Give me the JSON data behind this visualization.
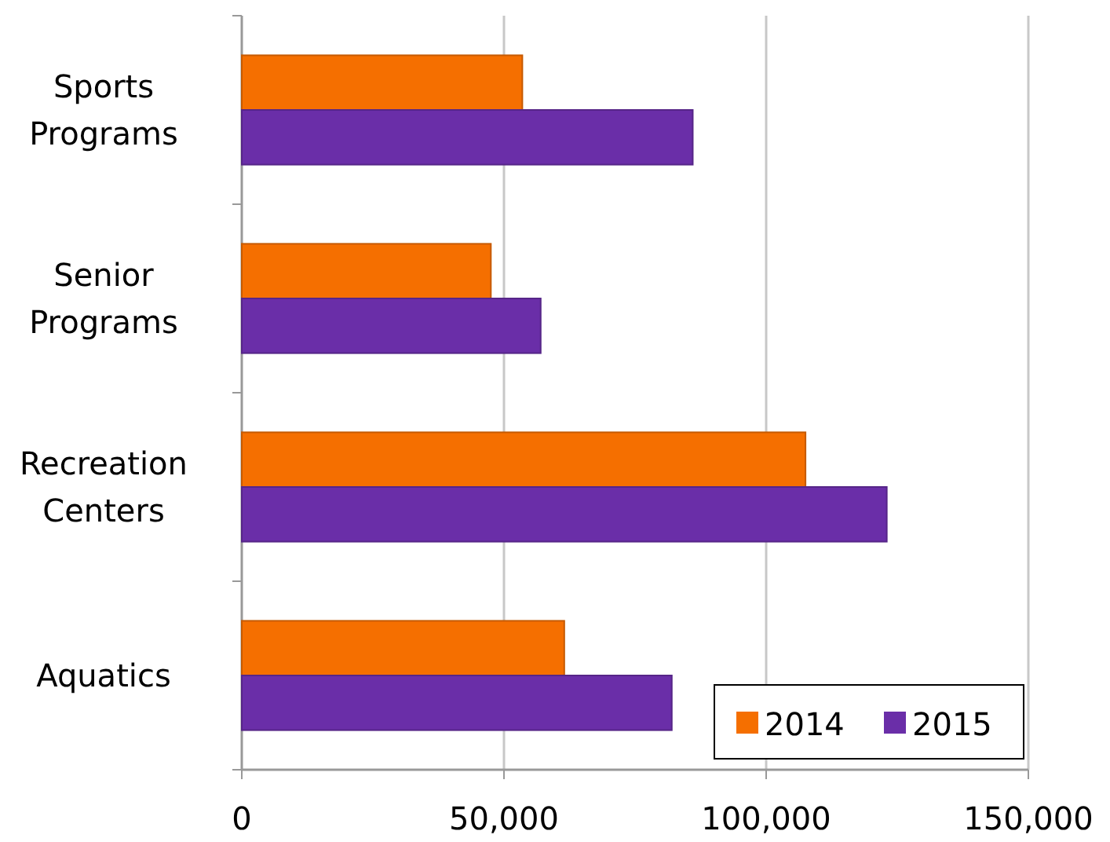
{
  "chart_data": {
    "type": "bar",
    "orientation": "horizontal",
    "categories": [
      "Sports Programs",
      "Senior Programs",
      "Recreation Centers",
      "Aquatics"
    ],
    "series": [
      {
        "name": "2014",
        "color": "#f56f00",
        "values": [
          53500,
          47500,
          107500,
          61500
        ]
      },
      {
        "name": "2015",
        "color": "#6a2ea8",
        "values": [
          86000,
          57000,
          123000,
          82000
        ]
      }
    ],
    "xlim": [
      0,
      150000
    ],
    "xticks": [
      {
        "value": 0,
        "label": "0"
      },
      {
        "value": 50000,
        "label": "50,000"
      },
      {
        "value": 100000,
        "label": "100,000"
      },
      {
        "value": 150000,
        "label": "150,000"
      }
    ],
    "grid": "x",
    "legend": "bottom right"
  }
}
